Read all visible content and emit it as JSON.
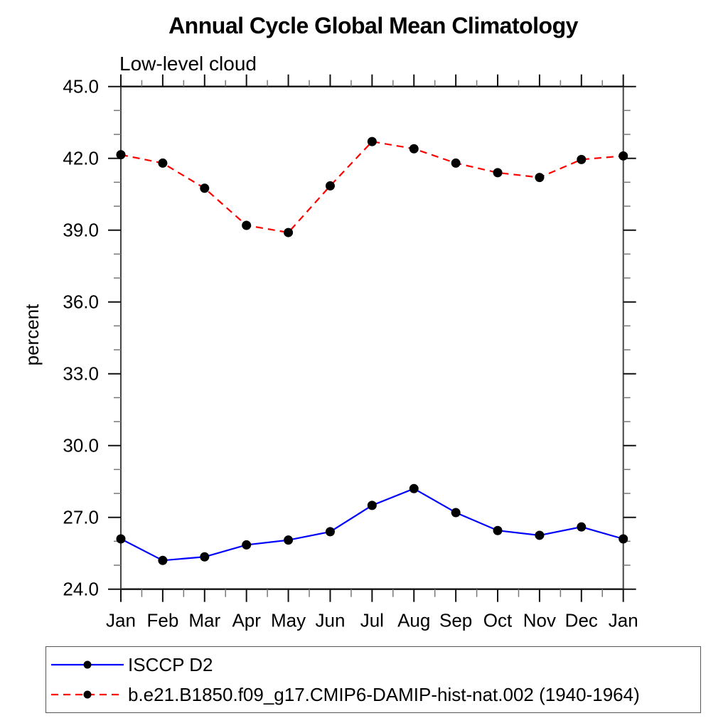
{
  "chart_data": {
    "type": "line",
    "title": "Annual Cycle Global Mean Climatology",
    "subtitle": "Low-level cloud",
    "ylabel": "percent",
    "xlabel": "",
    "categories": [
      "Jan",
      "Feb",
      "Mar",
      "Apr",
      "May",
      "Jun",
      "Jul",
      "Aug",
      "Sep",
      "Oct",
      "Nov",
      "Dec",
      "Jan"
    ],
    "ylim": [
      24.0,
      45.0
    ],
    "ytick_major_step": 3.0,
    "ytick_minor_step": 1.0,
    "ytick_labels": [
      "24.0",
      "27.0",
      "30.0",
      "33.0",
      "36.0",
      "39.0",
      "42.0",
      "45.0"
    ],
    "grid": false,
    "legend_position": "bottom-left-box",
    "series": [
      {
        "name": "ISCCP D2",
        "color": "#0000ff",
        "line_style": "solid",
        "marker": "filled-circle",
        "marker_color": "#000000",
        "values": [
          26.1,
          25.2,
          25.35,
          25.85,
          26.05,
          26.4,
          27.5,
          28.2,
          27.2,
          26.45,
          26.25,
          26.6,
          26.1
        ]
      },
      {
        "name": "b.e21.B1850.f09_g17.CMIP6-DAMIP-hist-nat.002 (1940-1964)",
        "color": "#ff0000",
        "line_style": "dashed",
        "marker": "filled-circle",
        "marker_color": "#000000",
        "values": [
          42.15,
          41.8,
          40.75,
          39.2,
          38.9,
          40.85,
          42.7,
          42.4,
          41.8,
          41.4,
          41.2,
          41.95,
          42.1
        ]
      }
    ]
  }
}
